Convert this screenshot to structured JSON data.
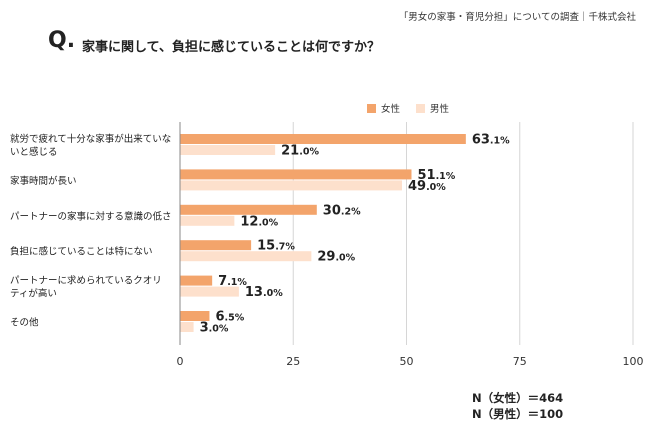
{
  "source": "「男女の家事・育児分担」についての調査｜千株式会社",
  "question": {
    "mark": "Q.",
    "text": "家事に関して、負担に感じていることは何ですか？"
  },
  "colors": {
    "female": "#f3a46b",
    "male": "#fde0cc",
    "grid": "#d6d6d6",
    "axis": "#888888"
  },
  "sample_sizes": [
    "N（女性）＝464",
    "N（男性）＝100"
  ],
  "chart_data": {
    "type": "bar",
    "orientation": "horizontal",
    "value_suffix": "%",
    "categories": [
      [
        "就労で疲れて十分な家事が出来ていな",
        "いと感じる"
      ],
      [
        "家事時間が長い"
      ],
      [
        "パートナーの家事に対する意識の低さ"
      ],
      [
        "負担に感じていることは特にない"
      ],
      [
        "パートナーに求められているクオリ",
        "ティが高い"
      ],
      [
        "その他"
      ]
    ],
    "series": [
      {
        "name": "女性",
        "values": [
          63.1,
          51.1,
          30.2,
          15.7,
          7.1,
          6.5
        ]
      },
      {
        "name": "男性",
        "values": [
          21.0,
          49.0,
          12.0,
          29.0,
          13.0,
          3.0
        ]
      }
    ],
    "xlim": [
      0,
      100
    ],
    "xticks": [
      0,
      25,
      50,
      75,
      100
    ],
    "grid": true,
    "legend": "top-right"
  }
}
